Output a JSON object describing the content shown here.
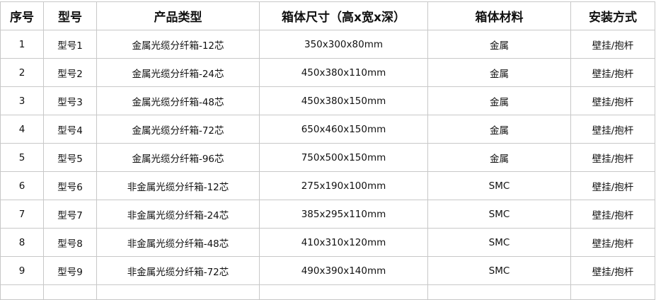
{
  "headers": [
    "序号",
    "型号",
    "产品类型",
    "箱体尺寸（高x宽x深）",
    "箱体材料",
    "安装方式"
  ],
  "rows": [
    [
      "1",
      "型号1",
      "金属光缆分纤箱-12芯",
      "350x300x80mm",
      "金属",
      "壁挂/抱杆"
    ],
    [
      "2",
      "型号2",
      "金属光缆分纤箱-24芯",
      "450x380x110mm",
      "金属",
      "壁挂/抱杆"
    ],
    [
      "3",
      "型号3",
      "金属光缆分纤箱-48芯",
      "450x380x150mm",
      "金属",
      "壁挂/抱杆"
    ],
    [
      "4",
      "型号4",
      "金属光缆分纤箱-72芯",
      "650x460x150mm",
      "金属",
      "壁挂/抱杆"
    ],
    [
      "5",
      "型号5",
      "金属光缆分纤箱-96芯",
      "750x500x150mm",
      "金属",
      "壁挂/抱杆"
    ],
    [
      "6",
      "型号6",
      "非金属光缆分纤箱-12芯",
      "275x190x100mm",
      "SMC",
      "壁挂/抱杆"
    ],
    [
      "7",
      "型号7",
      "非金属光缆分纤箱-24芯",
      "385x295x110mm",
      "SMC",
      "壁挂/抱杆"
    ],
    [
      "8",
      "型号8",
      "非金属光缆分纤箱-48芯",
      "410x310x120mm",
      "SMC",
      "壁挂/抱杆"
    ],
    [
      "9",
      "型号9",
      "非金属光缆分纤箱-72芯",
      "490x390x140mm",
      "SMC",
      "壁挂/抱杆"
    ]
  ]
}
